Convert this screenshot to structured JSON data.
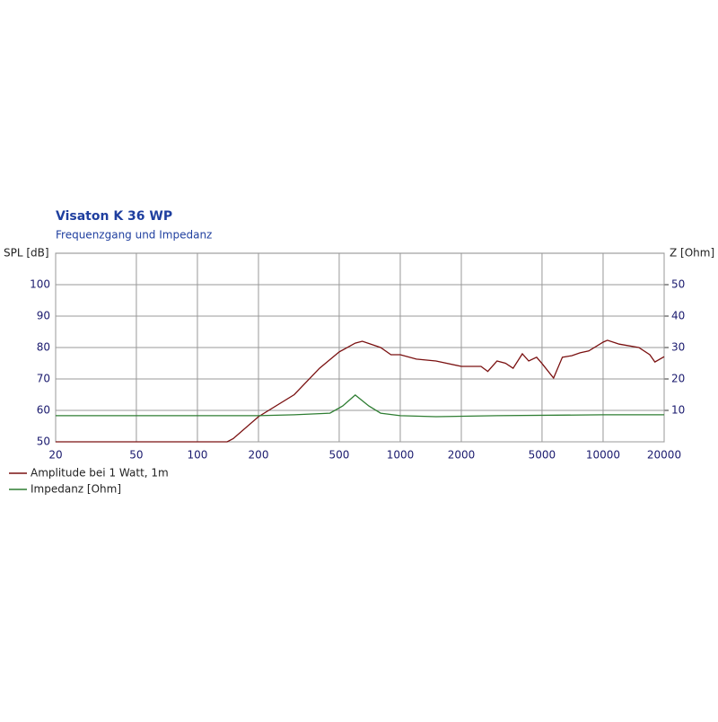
{
  "chart_data": {
    "type": "line",
    "title": "Visaton K 36 WP",
    "subtitle": "Frequenzgang und Impedanz",
    "y_label": "SPL [dB]",
    "y2_label": "Z [Ohm]",
    "log_x": true,
    "grid": true,
    "legend": "bottom-left",
    "xlim": [
      20,
      20000
    ],
    "xticks": [
      20,
      50,
      100,
      200,
      500,
      1000,
      2000,
      5000,
      10000,
      20000
    ],
    "ylim": [
      50,
      110
    ],
    "yticks": [
      50,
      60,
      70,
      80,
      90,
      100
    ],
    "y2lim": [
      0,
      60
    ],
    "y2ticks": [
      10,
      20,
      30,
      40,
      50
    ],
    "series": [
      {
        "name": "Amplitude bei 1 Watt, 1m",
        "color": "#7a1010",
        "x": [
          20,
          140,
          150,
          200,
          300,
          400,
          500,
          600,
          650,
          800,
          900,
          1000,
          1200,
          1500,
          2000,
          2500,
          2700,
          3000,
          3300,
          3600,
          4000,
          4300,
          4700,
          5000,
          5700,
          6300,
          7000,
          7700,
          8500,
          10000,
          10500,
          12000,
          15000,
          17000,
          18000,
          20000
        ],
        "values": [
          50,
          50,
          51,
          58,
          65,
          73.4,
          78.6,
          81.4,
          82,
          80,
          77.7,
          77.7,
          76.3,
          75.7,
          74,
          74,
          72.4,
          75.7,
          75,
          73.4,
          78,
          75.7,
          76.9,
          74.9,
          70.3,
          76.9,
          77.4,
          78.3,
          78.9,
          81.7,
          82.3,
          81.1,
          80,
          77.7,
          75.4,
          77.1
        ]
      },
      {
        "name": "Impedanz [Ohm]",
        "color": "#2e7d32",
        "axis": "y2",
        "x": [
          20,
          200,
          300,
          450,
          520,
          600,
          700,
          800,
          1000,
          1500,
          3000,
          10000,
          20000
        ],
        "values": [
          8.3,
          8.3,
          8.6,
          9.1,
          11.4,
          14.9,
          11.4,
          9.1,
          8.3,
          8,
          8.3,
          8.6,
          8.6
        ]
      }
    ]
  }
}
